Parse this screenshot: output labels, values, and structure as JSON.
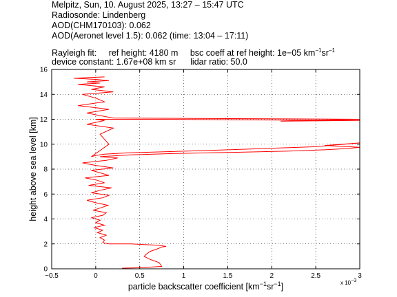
{
  "header": {
    "line1": "Melpitz, Sun, 10. August 2025, 13:27 – 15:47 UTC",
    "line2": "Radiosonde: Lindenberg",
    "line3": "AOD(CHM170103): 0.062",
    "line4": "AOD(Aeronet level 1.5): 0.062   (time: 13:04 – 17:11)",
    "rayleigh_label": "Rayleigh fit:",
    "ref_height": "ref height: 4180 m",
    "bsc_coeff_prefix": "bsc coeff at ref height: 1e−05 km",
    "bsc_sup1": "−1",
    "bsc_mid": "sr",
    "bsc_sup2": "−1",
    "device_constant": "device constant: 1.67e+08 km sr",
    "lidar_ratio": "lidar ratio: 50.0"
  },
  "chart_data": {
    "type": "line",
    "xlabel_prefix": "particle backscatter coefficient [km",
    "xlabel_sup1": "−1",
    "xlabel_mid": "sr",
    "xlabel_sup2": "−1",
    "xlabel_suffix": "]",
    "ylabel": "height above sea level [km]",
    "x_multiplier": "x 10",
    "x_multiplier_exp": "−3",
    "xlim": [
      -0.5,
      3
    ],
    "ylim": [
      0,
      16
    ],
    "xticks": [
      -0.5,
      0,
      0.5,
      1,
      1.5,
      2,
      2.5,
      3
    ],
    "xtick_labels": [
      "−0.5",
      "0",
      "0.5",
      "1",
      "1.5",
      "2",
      "2.5",
      "3"
    ],
    "yticks": [
      0,
      2,
      4,
      6,
      8,
      10,
      12,
      14,
      16
    ],
    "ytick_labels": [
      "0",
      "2",
      "4",
      "6",
      "8",
      "10",
      "12",
      "14",
      "16"
    ],
    "grid": true,
    "line_color": "#ff0000",
    "series": [
      {
        "x": [
          0.3,
          0.55,
          0.75,
          0.72,
          0.62,
          0.55,
          0.58,
          0.62,
          0.7,
          0.75,
          0.8,
          0.7,
          0.55,
          0.4,
          0.25,
          0.15,
          0.08,
          0.1,
          0.05,
          0.12,
          0.02,
          0.08,
          -0.02,
          0.1,
          0.0,
          0.05,
          -0.05,
          0.08,
          0.12,
          -0.03,
          0.06,
          0.14,
          0.0,
          -0.1,
          0.08,
          0.15,
          -0.05,
          0.05,
          0.18,
          -0.08,
          0.1,
          0.02,
          -0.12,
          0.15,
          0.05,
          -0.05,
          0.2,
          0.0,
          -0.15,
          0.12,
          0.25,
          0.05,
          0.4,
          0.9,
          1.6,
          2.2,
          2.6,
          2.85,
          3.0,
          2.6,
          3.0,
          2.5,
          1.3,
          0.35,
          0.1,
          0.0,
          -0.05,
          0.15,
          0.05,
          0.2,
          -0.1,
          0.1,
          0.0,
          0.7,
          1.8,
          3.0,
          2.1,
          3.0,
          0.2,
          0.05,
          -0.1,
          0.15,
          -0.2,
          0.1,
          0.0,
          -0.15,
          0.2,
          -0.05,
          0.1,
          -0.2,
          0.05,
          -0.1,
          0.15,
          0.0,
          -0.25,
          0.1
        ],
        "y": [
          0.05,
          0.1,
          0.2,
          0.5,
          0.75,
          1.0,
          1.2,
          1.4,
          1.6,
          1.75,
          1.8,
          1.9,
          1.95,
          2.0,
          2.0,
          2.0,
          2.1,
          2.3,
          2.5,
          2.7,
          2.9,
          3.1,
          3.3,
          3.5,
          3.7,
          3.9,
          4.1,
          4.3,
          4.5,
          4.7,
          4.9,
          5.1,
          5.3,
          5.5,
          5.7,
          5.9,
          6.1,
          6.3,
          6.5,
          6.7,
          6.9,
          7.1,
          7.3,
          7.5,
          7.7,
          7.9,
          8.1,
          8.3,
          8.5,
          8.7,
          8.9,
          9.0,
          9.15,
          9.25,
          9.35,
          9.45,
          9.55,
          9.65,
          9.75,
          9.9,
          10.1,
          9.8,
          9.5,
          9.3,
          9.2,
          9.1,
          9.0,
          10.0,
          10.8,
          11.3,
          11.6,
          11.9,
          12.0,
          12.0,
          11.95,
          11.9,
          11.85,
          12.0,
          12.1,
          12.3,
          12.5,
          12.8,
          13.1,
          13.4,
          13.7,
          14.0,
          14.2,
          14.4,
          14.6,
          14.8,
          14.9,
          15.0,
          15.1,
          15.2,
          15.3,
          15.4
        ]
      }
    ]
  }
}
